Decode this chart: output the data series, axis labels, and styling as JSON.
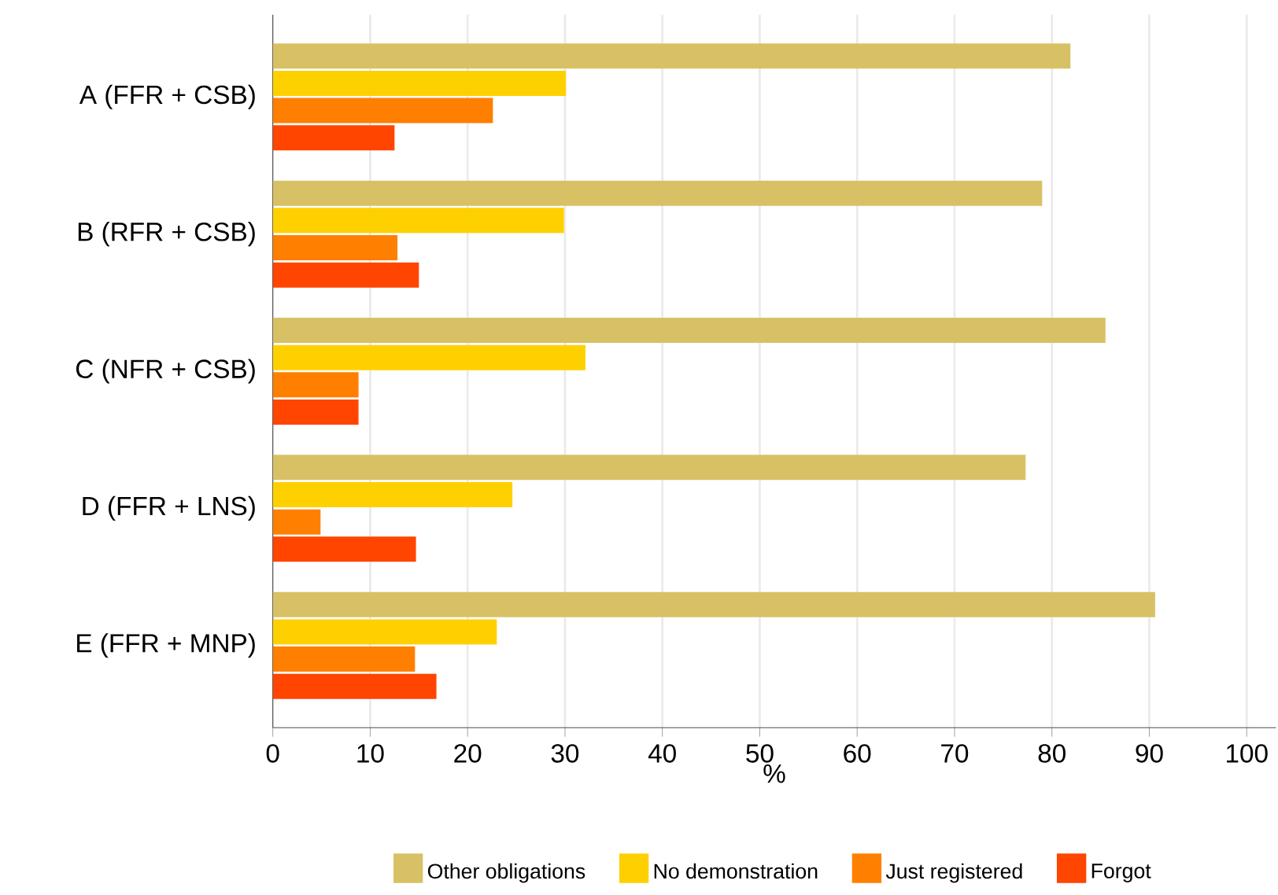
{
  "chart_data": {
    "type": "bar",
    "orientation": "horizontal",
    "xlabel": "%",
    "categories": [
      "A (FFR + CSB)",
      "B (RFR + CSB)",
      "C (NFR + CSB)",
      "D (FFR + LNS)",
      "E (FFR + MNP)"
    ],
    "series": [
      {
        "name": "Other obligations",
        "color": "#d8c165",
        "values": [
          81.9,
          79.0,
          85.5,
          77.3,
          90.6
        ]
      },
      {
        "name": "No demonstration",
        "color": "#ffd000",
        "values": [
          30.1,
          29.9,
          32.1,
          24.6,
          23.0
        ]
      },
      {
        "name": "Just registered",
        "color": "#ff7f00",
        "values": [
          22.6,
          12.8,
          8.8,
          4.9,
          14.6
        ]
      },
      {
        "name": "Forgot",
        "color": "#ff4500",
        "values": [
          12.5,
          15.0,
          8.8,
          14.7,
          16.8
        ]
      }
    ],
    "xlim": [
      0,
      103
    ],
    "xticks": [
      0,
      10,
      20,
      30,
      40,
      50,
      60,
      70,
      80,
      90,
      100
    ],
    "grid": "x",
    "legend": "bottom"
  }
}
